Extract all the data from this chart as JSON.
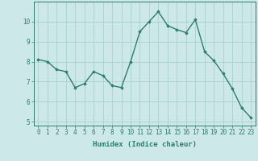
{
  "x": [
    0,
    1,
    2,
    3,
    4,
    5,
    6,
    7,
    8,
    9,
    10,
    11,
    12,
    13,
    14,
    15,
    16,
    17,
    18,
    19,
    20,
    21,
    22,
    23
  ],
  "y": [
    8.1,
    8.0,
    7.6,
    7.5,
    6.7,
    6.9,
    7.5,
    7.3,
    6.8,
    6.7,
    8.0,
    9.5,
    10.0,
    10.5,
    9.8,
    9.6,
    9.45,
    10.1,
    8.5,
    8.05,
    7.4,
    6.65,
    5.7,
    5.2
  ],
  "line_color": "#2e7d6e",
  "marker": "D",
  "marker_size": 1.8,
  "line_width": 1.0,
  "bg_color": "#cde8e8",
  "grid_color": "#aacece",
  "xlabel": "Humidex (Indice chaleur)",
  "xlim": [
    -0.5,
    23.5
  ],
  "ylim": [
    4.8,
    11.0
  ],
  "yticks": [
    5,
    6,
    7,
    8,
    9,
    10
  ],
  "xticks": [
    0,
    1,
    2,
    3,
    4,
    5,
    6,
    7,
    8,
    9,
    10,
    11,
    12,
    13,
    14,
    15,
    16,
    17,
    18,
    19,
    20,
    21,
    22,
    23
  ],
  "tick_color": "#2e7d6e",
  "label_color": "#2e7d6e",
  "xlabel_fontsize": 6.5,
  "tick_fontsize": 5.5
}
